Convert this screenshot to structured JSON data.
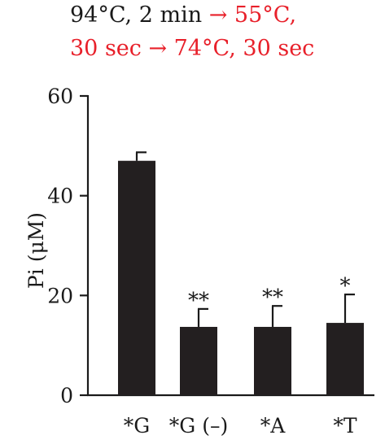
{
  "chart_data": {
    "type": "bar",
    "title_parts": [
      {
        "text": "94°C, 2 min ",
        "color": "#1a1a1a",
        "line": 0
      },
      {
        "text": "→ 55°C,",
        "color": "#e8202a",
        "line": 0
      },
      {
        "text": "30 sec → 74°C, 30 sec",
        "color": "#e8202a",
        "line": 1
      }
    ],
    "categories": [
      "*G",
      "*G (–)",
      "*A",
      "*T"
    ],
    "series": [
      {
        "values": [
          47,
          13.7,
          13.7,
          14.5
        ],
        "errors": [
          1.7,
          3.6,
          4.2,
          5.7
        ],
        "color": "#231f20"
      }
    ],
    "significance": [
      "",
      "**",
      "**",
      "*"
    ],
    "ylabel": "Pi (μM)",
    "ylim": [
      0,
      60
    ],
    "yticks": [
      0,
      20,
      40,
      60
    ],
    "grid": false,
    "colors": {
      "text": "#1a1a1a",
      "accent": "#e8202a",
      "bar": "#231f20"
    }
  }
}
